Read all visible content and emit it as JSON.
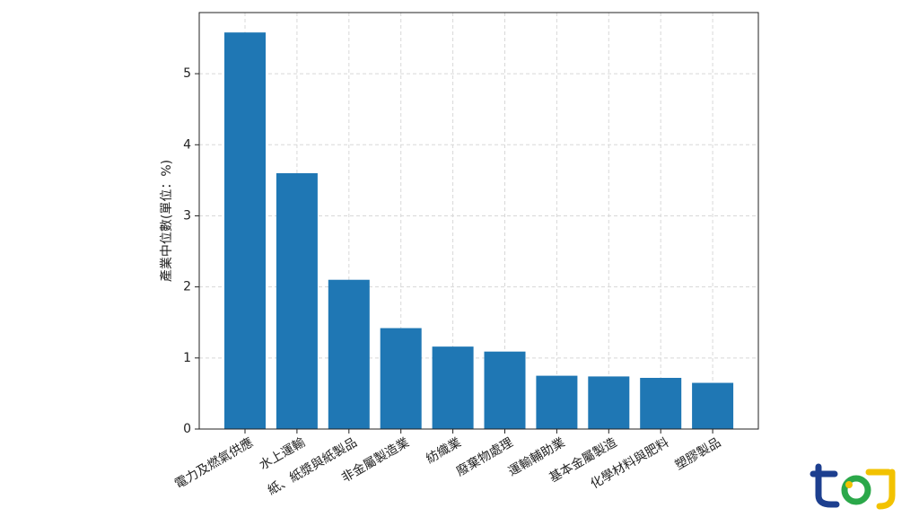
{
  "chart_data": {
    "type": "bar",
    "y_label": "產業中位數(單位：%)",
    "categories": [
      "電力及燃氣供應",
      "水上運輸",
      "紙、紙漿與紙製品",
      "非金屬製造業",
      "紡織業",
      "廢棄物處理",
      "運輸輔助業",
      "基本金屬製造",
      "化學材料與肥料",
      "塑膠製品"
    ],
    "values": [
      5.58,
      3.6,
      2.1,
      1.42,
      1.16,
      1.09,
      0.75,
      0.74,
      0.72,
      0.65
    ],
    "color": "#1f77b4",
    "ylim": [
      0,
      5.86
    ],
    "yticks": [
      0,
      1,
      2,
      3,
      4,
      5
    ],
    "grid": true
  }
}
